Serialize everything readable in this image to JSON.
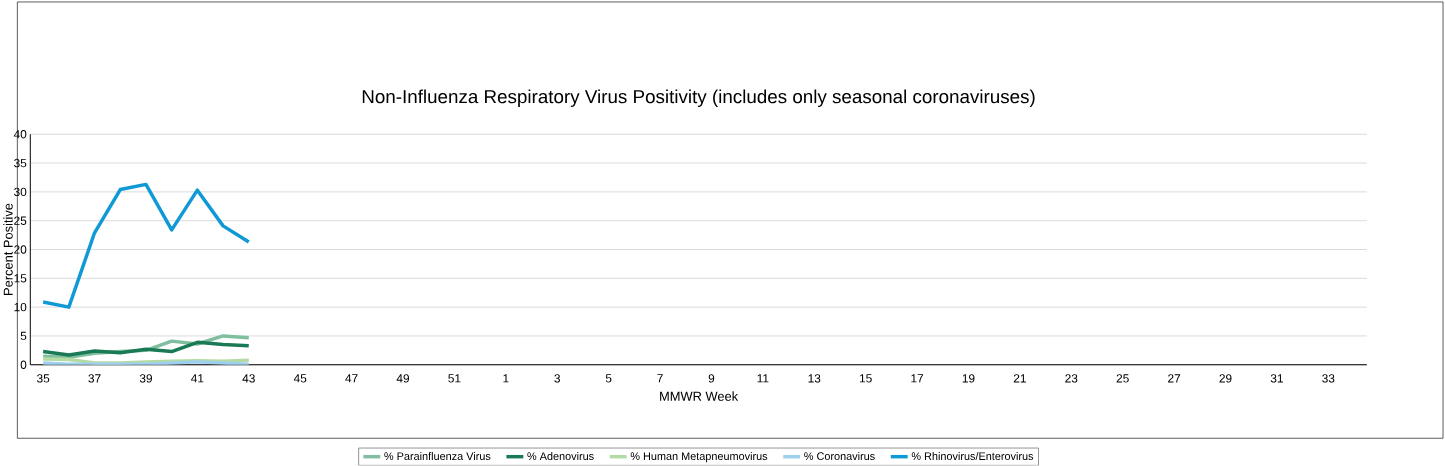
{
  "chart_data": {
    "type": "line",
    "title": "Non-Influenza Respiratory Virus Positivity (includes only seasonal coronaviruses)",
    "xlabel": "MMWR Week",
    "ylabel": "Percent Positive",
    "categories": [
      "35",
      null,
      "37",
      null,
      "39",
      null,
      "41",
      null,
      "43",
      null,
      "45",
      null,
      "47",
      null,
      "49",
      null,
      "51",
      null,
      "1",
      null,
      "3",
      null,
      "5",
      null,
      "7",
      null,
      "9",
      null,
      "11",
      null,
      "13",
      null,
      "15",
      null,
      "17",
      null,
      "19",
      null,
      "21",
      null,
      "23",
      null,
      "25",
      null,
      "27",
      null,
      "29",
      null,
      "31",
      null,
      "33",
      null
    ],
    "series": [
      {
        "name": "% Parainfluenza Virus",
        "color": "#7fbf9f",
        "values": [
          1.5,
          1.3,
          2.0,
          2.3,
          2.5,
          4.1,
          3.6,
          5.0,
          4.7,
          null,
          null,
          null,
          null,
          null,
          null,
          null,
          null,
          null,
          null,
          null,
          null,
          null,
          null,
          null,
          null,
          null,
          null,
          null,
          null,
          null,
          null,
          null,
          null,
          null,
          null,
          null,
          null,
          null,
          null,
          null,
          null,
          null,
          null,
          null,
          null,
          null,
          null,
          null,
          null,
          null,
          null,
          null
        ]
      },
      {
        "name": "% Adenovirus",
        "color": "#1a7a55",
        "values": [
          2.3,
          1.7,
          2.4,
          2.1,
          2.7,
          2.3,
          3.9,
          3.5,
          3.3,
          null,
          null,
          null,
          null,
          null,
          null,
          null,
          null,
          null,
          null,
          null,
          null,
          null,
          null,
          null,
          null,
          null,
          null,
          null,
          null,
          null,
          null,
          null,
          null,
          null,
          null,
          null,
          null,
          null,
          null,
          null,
          null,
          null,
          null,
          null,
          null,
          null,
          null,
          null,
          null,
          null,
          null,
          null
        ]
      },
      {
        "name": "% Human Metapneumovirus",
        "color": "#b5dba4",
        "values": [
          1.0,
          0.9,
          0.3,
          0.3,
          0.5,
          0.6,
          0.7,
          0.6,
          0.8,
          null,
          null,
          null,
          null,
          null,
          null,
          null,
          null,
          null,
          null,
          null,
          null,
          null,
          null,
          null,
          null,
          null,
          null,
          null,
          null,
          null,
          null,
          null,
          null,
          null,
          null,
          null,
          null,
          null,
          null,
          null,
          null,
          null,
          null,
          null,
          null,
          null,
          null,
          null,
          null,
          null,
          null,
          null
        ]
      },
      {
        "name": "% Coronavirus",
        "color": "#9dd0ef",
        "values": [
          0.3,
          0.1,
          0.1,
          0.1,
          0.1,
          0.3,
          0.5,
          0.3,
          0.1,
          null,
          null,
          null,
          null,
          null,
          null,
          null,
          null,
          null,
          null,
          null,
          null,
          null,
          null,
          null,
          null,
          null,
          null,
          null,
          null,
          null,
          null,
          null,
          null,
          null,
          null,
          null,
          null,
          null,
          null,
          null,
          null,
          null,
          null,
          null,
          null,
          null,
          null,
          null,
          null,
          null,
          null,
          null
        ]
      },
      {
        "name": "% Rhinovirus/Enterovirus",
        "color": "#0f9ad6",
        "values": [
          10.9,
          10.0,
          22.9,
          30.4,
          31.3,
          23.4,
          30.3,
          24.1,
          21.3,
          null,
          null,
          null,
          null,
          null,
          null,
          null,
          null,
          null,
          null,
          null,
          null,
          null,
          null,
          null,
          null,
          null,
          null,
          null,
          null,
          null,
          null,
          null,
          null,
          null,
          null,
          null,
          null,
          null,
          null,
          null,
          null,
          null,
          null,
          null,
          null,
          null,
          null,
          null,
          null,
          null,
          null,
          null
        ]
      }
    ],
    "ylim": [
      0,
      40
    ],
    "yticks": [
      0,
      5,
      10,
      15,
      20,
      25,
      30,
      35,
      40
    ],
    "grid": "y",
    "legend": "bottom",
    "marker": "none",
    "line_style": "solid"
  }
}
